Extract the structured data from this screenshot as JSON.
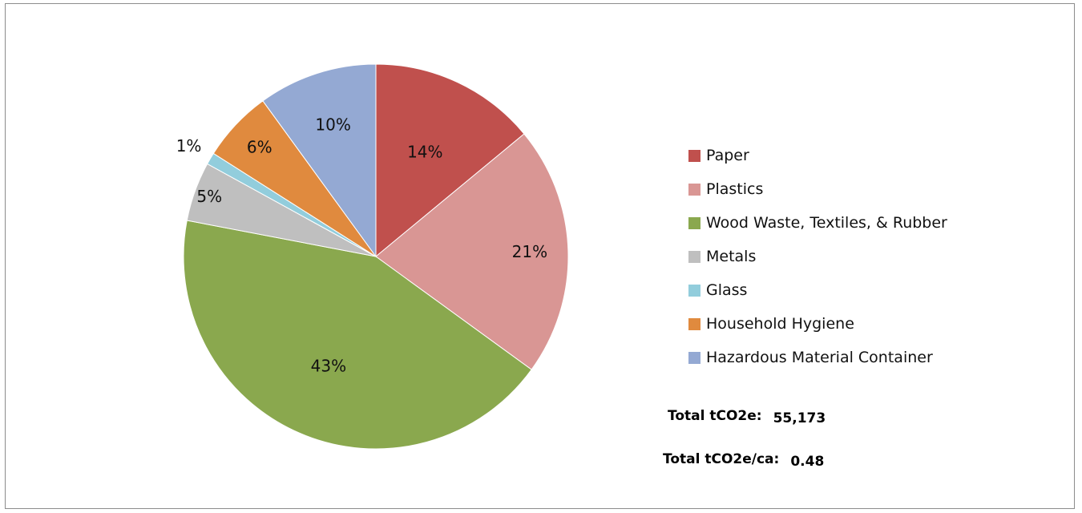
{
  "chart_data": {
    "type": "pie",
    "categories": [
      "Paper",
      "Plastics",
      "Wood Waste, Textiles, & Rubber",
      "Metals",
      "Glass",
      "Household Hygiene",
      "Hazardous Material Container"
    ],
    "values": [
      14,
      21,
      43,
      5,
      1,
      6,
      10
    ],
    "data_labels": [
      "14%",
      "21%",
      "43%",
      "5%",
      "1%",
      "6%",
      "10%"
    ],
    "colors": [
      "#c0504d",
      "#d99694",
      "#8aa84e",
      "#bfbfbf",
      "#92cddc",
      "#e08a3e",
      "#94a9d3"
    ],
    "legend_position": "right"
  },
  "totals": {
    "total_label": "Total tCO2e:",
    "total_value": "55,173",
    "per_capita_label": "Total tCO2e/ca:",
    "per_capita_value": "0.48"
  }
}
